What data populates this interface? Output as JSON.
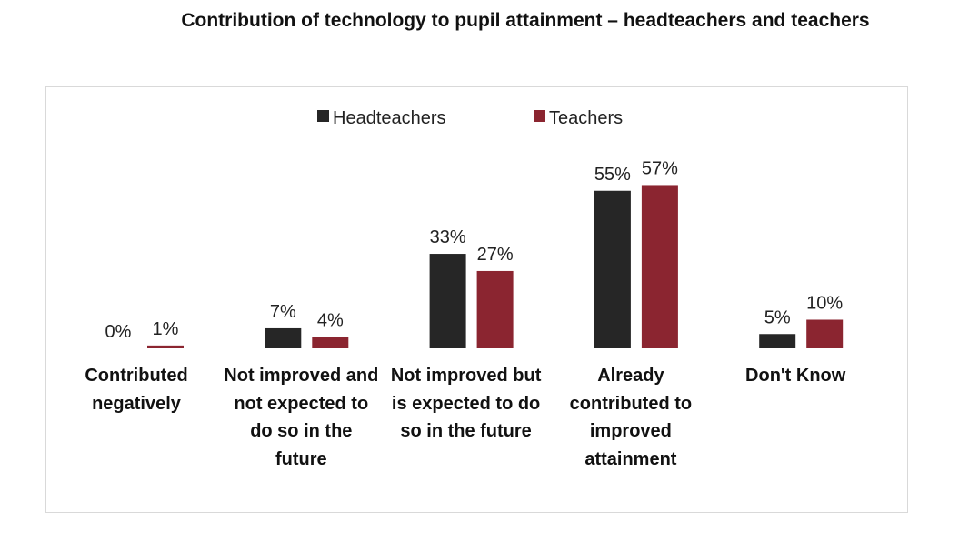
{
  "chart_data": {
    "type": "bar",
    "title": "Contribution of technology to pupil attainment – headteachers and teachers",
    "categories": [
      "Contributed negatively",
      "Not improved and not expected to do so in the future",
      "Not improved but is expected to do so in the future",
      "Already contributed to improved attainment",
      "Don't Know"
    ],
    "series": [
      {
        "name": "Headteachers",
        "color": "#262626",
        "values": [
          0,
          7,
          33,
          55,
          5
        ],
        "value_labels": [
          "0%",
          "7%",
          "33%",
          "55%",
          "5%"
        ]
      },
      {
        "name": "Teachers",
        "color": "#8b2530",
        "values": [
          1,
          4,
          27,
          57,
          10
        ],
        "value_labels": [
          "1%",
          "4%",
          "27%",
          "57%",
          "10%"
        ]
      }
    ],
    "legend": "top"
  }
}
